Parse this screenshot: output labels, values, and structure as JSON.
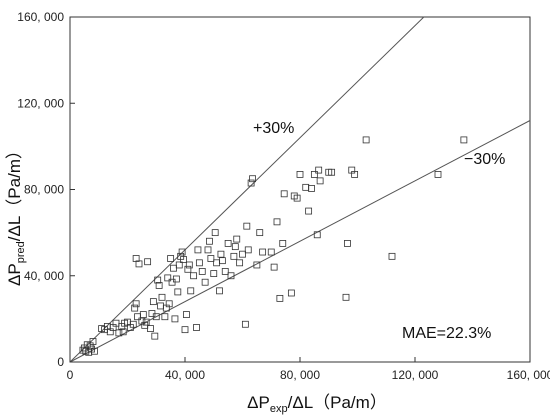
{
  "chart_data": {
    "type": "scatter",
    "xlabel": {
      "main": "ΔP",
      "sub": "exp",
      "rest": "/ΔL（Pa/m）"
    },
    "ylabel": {
      "main": "ΔP",
      "sub": "pred",
      "rest": "/ΔL（Pa/m）"
    },
    "xlim": [
      0,
      160000
    ],
    "ylim": [
      0,
      160000
    ],
    "xticks": [
      0,
      40000,
      80000,
      120000,
      160000
    ],
    "yticks": [
      0,
      40000,
      80000,
      120000,
      160000
    ],
    "xtick_labels": [
      "0",
      "40, 000",
      "80, 000",
      "120, 000",
      "160, 000"
    ],
    "ytick_labels": [
      "0",
      "40, 000",
      "80, 000",
      "120, 000",
      "160, 000"
    ],
    "reference_lines": [
      {
        "label": "+30%",
        "slope": 1.3
      },
      {
        "label": "−30%",
        "slope": 0.7
      }
    ],
    "annotation": "MAE=22.3%",
    "marker": "open-square",
    "points": [
      [
        4500,
        5500
      ],
      [
        5000,
        6500
      ],
      [
        5500,
        5000
      ],
      [
        6000,
        8000
      ],
      [
        6500,
        4500
      ],
      [
        7000,
        7500
      ],
      [
        7500,
        6000
      ],
      [
        8000,
        9500
      ],
      [
        8500,
        5000
      ],
      [
        11000,
        15500
      ],
      [
        12000,
        15000
      ],
      [
        13000,
        16500
      ],
      [
        14000,
        14000
      ],
      [
        15000,
        16000
      ],
      [
        16000,
        18000
      ],
      [
        17000,
        13500
      ],
      [
        18000,
        16500
      ],
      [
        18500,
        14000
      ],
      [
        19000,
        18000
      ],
      [
        20000,
        18500
      ],
      [
        21000,
        16000
      ],
      [
        22000,
        17500
      ],
      [
        22500,
        25000
      ],
      [
        23000,
        27000
      ],
      [
        23500,
        21000
      ],
      [
        23000,
        48000
      ],
      [
        24000,
        45500
      ],
      [
        25000,
        19000
      ],
      [
        25500,
        22000
      ],
      [
        26000,
        17000
      ],
      [
        26500,
        18500
      ],
      [
        27000,
        46500
      ],
      [
        28000,
        15500
      ],
      [
        28500,
        22500
      ],
      [
        29000,
        28000
      ],
      [
        29500,
        12000
      ],
      [
        30000,
        21000
      ],
      [
        30500,
        38000
      ],
      [
        31000,
        35500
      ],
      [
        31500,
        26000
      ],
      [
        32000,
        30000
      ],
      [
        33000,
        21000
      ],
      [
        33500,
        25000
      ],
      [
        34000,
        39000
      ],
      [
        34500,
        27000
      ],
      [
        35000,
        48000
      ],
      [
        35500,
        37000
      ],
      [
        36000,
        43500
      ],
      [
        36500,
        20000
      ],
      [
        37000,
        38500
      ],
      [
        37500,
        32500
      ],
      [
        38000,
        45000
      ],
      [
        38500,
        49000
      ],
      [
        39000,
        51000
      ],
      [
        39500,
        47500
      ],
      [
        40000,
        15000
      ],
      [
        40500,
        22000
      ],
      [
        41000,
        43000
      ],
      [
        41500,
        45000
      ],
      [
        42000,
        33000
      ],
      [
        43000,
        40000
      ],
      [
        44000,
        16000
      ],
      [
        44500,
        52000
      ],
      [
        45000,
        46000
      ],
      [
        46000,
        42000
      ],
      [
        47000,
        37000
      ],
      [
        48000,
        52000
      ],
      [
        48500,
        56000
      ],
      [
        49000,
        48000
      ],
      [
        50000,
        41000
      ],
      [
        50500,
        60000
      ],
      [
        51000,
        46000
      ],
      [
        52000,
        33000
      ],
      [
        52500,
        50000
      ],
      [
        53000,
        47000
      ],
      [
        54000,
        42000
      ],
      [
        55000,
        55000
      ],
      [
        56000,
        40000
      ],
      [
        57000,
        49000
      ],
      [
        57500,
        53500
      ],
      [
        58000,
        57000
      ],
      [
        59000,
        46000
      ],
      [
        60000,
        50000
      ],
      [
        61000,
        17500
      ],
      [
        61500,
        63000
      ],
      [
        62000,
        52000
      ],
      [
        63000,
        83000
      ],
      [
        63500,
        85000
      ],
      [
        65000,
        45000
      ],
      [
        66000,
        60000
      ],
      [
        67000,
        51000
      ],
      [
        70000,
        51000
      ],
      [
        71000,
        44000
      ],
      [
        72000,
        65000
      ],
      [
        73000,
        29500
      ],
      [
        74000,
        55000
      ],
      [
        74500,
        78000
      ],
      [
        77000,
        32000
      ],
      [
        78000,
        77000
      ],
      [
        79000,
        76000
      ],
      [
        80000,
        87000
      ],
      [
        82000,
        81000
      ],
      [
        83000,
        70000
      ],
      [
        84000,
        80500
      ],
      [
        85000,
        87000
      ],
      [
        86000,
        59000
      ],
      [
        86500,
        89000
      ],
      [
        87000,
        84000
      ],
      [
        90000,
        88000
      ],
      [
        91000,
        88000
      ],
      [
        96000,
        30000
      ],
      [
        96500,
        55000
      ],
      [
        98000,
        89000
      ],
      [
        99000,
        87000
      ],
      [
        103000,
        103000
      ],
      [
        112000,
        49000
      ],
      [
        128000,
        87000
      ],
      [
        137000,
        103000
      ]
    ]
  }
}
